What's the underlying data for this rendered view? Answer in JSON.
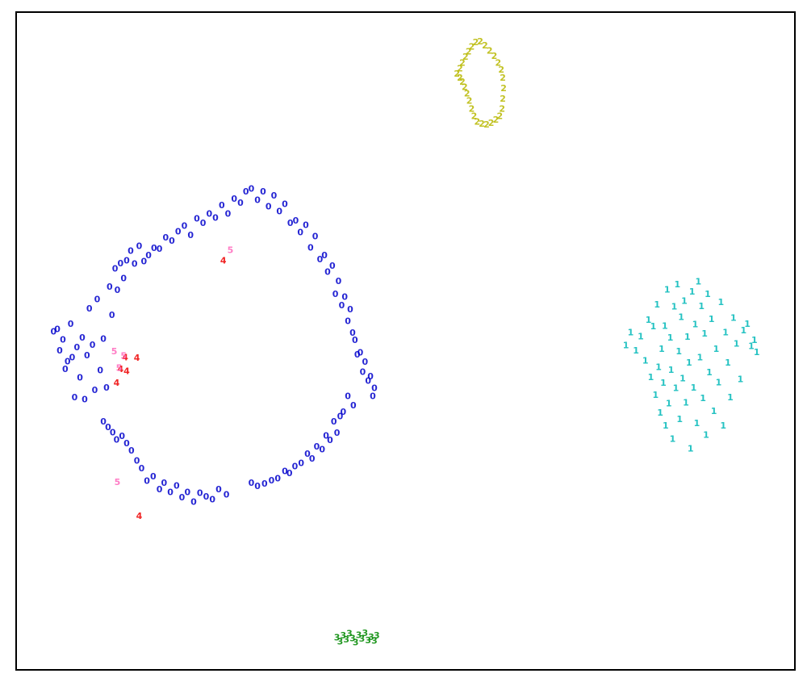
{
  "chart_data": {
    "type": "scatter",
    "title": "",
    "xlabel": "",
    "ylabel": "",
    "xlim": [
      0,
      100
    ],
    "ylim": [
      0,
      100
    ],
    "grid": false,
    "legend": "none",
    "ticks": "none",
    "series": [
      {
        "label": "0",
        "color": "#0000cc",
        "points": [
          [
            4.8,
            51.4
          ],
          [
            5.3,
            51.8
          ],
          [
            5.6,
            48.5
          ],
          [
            6.0,
            50.2
          ],
          [
            6.3,
            45.7
          ],
          [
            6.6,
            46.9
          ],
          [
            7.0,
            52.6
          ],
          [
            7.2,
            47.5
          ],
          [
            7.5,
            41.4
          ],
          [
            7.8,
            49.0
          ],
          [
            8.2,
            44.4
          ],
          [
            8.5,
            50.5
          ],
          [
            8.8,
            41.1
          ],
          [
            9.1,
            47.8
          ],
          [
            9.4,
            54.9
          ],
          [
            9.8,
            49.4
          ],
          [
            10.1,
            42.5
          ],
          [
            10.4,
            56.3
          ],
          [
            10.8,
            45.5
          ],
          [
            11.2,
            50.3
          ],
          [
            11.6,
            42.9
          ],
          [
            12.0,
            58.2
          ],
          [
            12.3,
            53.9
          ],
          [
            12.7,
            61.0
          ],
          [
            13.0,
            57.7
          ],
          [
            13.4,
            61.8
          ],
          [
            13.8,
            59.5
          ],
          [
            14.2,
            62.2
          ],
          [
            14.7,
            63.7
          ],
          [
            15.2,
            61.7
          ],
          [
            15.8,
            64.4
          ],
          [
            16.4,
            62.1
          ],
          [
            17.0,
            63.0
          ],
          [
            17.7,
            64.1
          ],
          [
            18.4,
            64.0
          ],
          [
            19.2,
            65.7
          ],
          [
            20.0,
            65.2
          ],
          [
            20.8,
            66.6
          ],
          [
            21.6,
            67.5
          ],
          [
            22.4,
            66.1
          ],
          [
            23.2,
            68.6
          ],
          [
            24.0,
            67.9
          ],
          [
            24.8,
            69.3
          ],
          [
            25.6,
            68.7
          ],
          [
            26.4,
            70.6
          ],
          [
            27.2,
            69.3
          ],
          [
            28.0,
            71.6
          ],
          [
            28.8,
            71.0
          ],
          [
            29.5,
            72.7
          ],
          [
            30.2,
            73.1
          ],
          [
            31.0,
            71.4
          ],
          [
            31.7,
            72.7
          ],
          [
            32.4,
            70.4
          ],
          [
            33.1,
            72.1
          ],
          [
            33.8,
            69.7
          ],
          [
            34.5,
            70.8
          ],
          [
            35.2,
            67.9
          ],
          [
            35.9,
            68.3
          ],
          [
            36.5,
            66.5
          ],
          [
            37.2,
            67.6
          ],
          [
            37.8,
            64.2
          ],
          [
            38.4,
            65.9
          ],
          [
            39.0,
            62.4
          ],
          [
            39.6,
            63.0
          ],
          [
            40.0,
            60.5
          ],
          [
            40.6,
            61.4
          ],
          [
            41.0,
            57.1
          ],
          [
            41.4,
            59.1
          ],
          [
            41.8,
            55.4
          ],
          [
            42.2,
            56.7
          ],
          [
            42.6,
            53.0
          ],
          [
            42.9,
            54.8
          ],
          [
            43.2,
            51.2
          ],
          [
            43.5,
            50.1
          ],
          [
            43.8,
            47.9
          ],
          [
            44.2,
            48.2
          ],
          [
            44.5,
            45.3
          ],
          [
            44.8,
            46.8
          ],
          [
            45.2,
            43.9
          ],
          [
            45.5,
            44.6
          ],
          [
            45.8,
            41.6
          ],
          [
            46.0,
            42.8
          ],
          [
            43.3,
            40.2
          ],
          [
            42.6,
            41.6
          ],
          [
            42.0,
            39.2
          ],
          [
            41.6,
            38.5
          ],
          [
            41.2,
            36.0
          ],
          [
            40.8,
            37.7
          ],
          [
            40.3,
            34.9
          ],
          [
            39.8,
            35.6
          ],
          [
            39.3,
            33.5
          ],
          [
            38.6,
            33.9
          ],
          [
            38.0,
            32.1
          ],
          [
            37.4,
            32.8
          ],
          [
            36.6,
            31.4
          ],
          [
            35.8,
            30.9
          ],
          [
            35.1,
            29.9
          ],
          [
            34.5,
            30.2
          ],
          [
            33.6,
            29.1
          ],
          [
            32.8,
            28.8
          ],
          [
            31.9,
            28.3
          ],
          [
            31.0,
            27.9
          ],
          [
            30.2,
            28.4
          ],
          [
            27.0,
            26.6
          ],
          [
            26.0,
            27.4
          ],
          [
            25.2,
            25.9
          ],
          [
            24.4,
            26.3
          ],
          [
            23.6,
            26.9
          ],
          [
            22.8,
            25.5
          ],
          [
            22.0,
            27.0
          ],
          [
            21.3,
            26.2
          ],
          [
            20.6,
            28.0
          ],
          [
            19.8,
            27.0
          ],
          [
            19.0,
            28.4
          ],
          [
            18.4,
            27.4
          ],
          [
            17.6,
            29.4
          ],
          [
            16.8,
            28.7
          ],
          [
            16.1,
            30.6
          ],
          [
            15.5,
            31.8
          ],
          [
            14.8,
            33.3
          ],
          [
            14.2,
            34.4
          ],
          [
            13.6,
            35.5
          ],
          [
            12.9,
            35.0
          ],
          [
            12.4,
            36.1
          ],
          [
            11.8,
            36.9
          ],
          [
            11.2,
            37.7
          ]
        ]
      },
      {
        "label": "1",
        "color": "#00b8b8",
        "points": [
          [
            78.3,
            49.3
          ],
          [
            78.9,
            51.3
          ],
          [
            79.6,
            48.5
          ],
          [
            80.2,
            50.7
          ],
          [
            80.8,
            47.0
          ],
          [
            81.2,
            53.2
          ],
          [
            81.5,
            44.5
          ],
          [
            81.8,
            52.2
          ],
          [
            82.1,
            41.8
          ],
          [
            82.3,
            55.5
          ],
          [
            82.5,
            46.0
          ],
          [
            82.7,
            39.1
          ],
          [
            82.9,
            48.8
          ],
          [
            83.1,
            43.6
          ],
          [
            83.3,
            52.3
          ],
          [
            83.4,
            37.1
          ],
          [
            83.6,
            57.8
          ],
          [
            83.8,
            40.5
          ],
          [
            84.0,
            50.5
          ],
          [
            84.1,
            45.6
          ],
          [
            84.3,
            35.1
          ],
          [
            84.5,
            55.2
          ],
          [
            84.7,
            42.8
          ],
          [
            84.9,
            58.6
          ],
          [
            85.1,
            48.4
          ],
          [
            85.2,
            38.1
          ],
          [
            85.4,
            53.6
          ],
          [
            85.6,
            44.3
          ],
          [
            85.8,
            56.1
          ],
          [
            86.0,
            40.6
          ],
          [
            86.2,
            50.6
          ],
          [
            86.4,
            46.7
          ],
          [
            86.6,
            33.6
          ],
          [
            86.8,
            57.5
          ],
          [
            87.0,
            42.9
          ],
          [
            87.2,
            52.5
          ],
          [
            87.4,
            37.5
          ],
          [
            87.6,
            59.0
          ],
          [
            87.8,
            47.5
          ],
          [
            88.0,
            55.3
          ],
          [
            88.2,
            41.3
          ],
          [
            88.4,
            51.1
          ],
          [
            88.6,
            35.7
          ],
          [
            88.8,
            57.1
          ],
          [
            89.0,
            45.2
          ],
          [
            89.3,
            53.3
          ],
          [
            89.6,
            39.3
          ],
          [
            89.9,
            48.8
          ],
          [
            90.2,
            43.7
          ],
          [
            90.5,
            55.9
          ],
          [
            90.8,
            37.1
          ],
          [
            91.1,
            51.3
          ],
          [
            91.4,
            46.7
          ],
          [
            91.7,
            41.4
          ],
          [
            92.1,
            53.5
          ],
          [
            92.5,
            49.6
          ],
          [
            93.0,
            44.2
          ],
          [
            93.4,
            51.6
          ],
          [
            93.9,
            52.6
          ],
          [
            94.4,
            49.2
          ],
          [
            94.8,
            50.1
          ],
          [
            95.1,
            48.3
          ]
        ]
      },
      {
        "label": "2",
        "color": "#b8b800",
        "points": [
          [
            56.6,
            90.6
          ],
          [
            57.0,
            91.4
          ],
          [
            57.3,
            92.3
          ],
          [
            57.7,
            93.2
          ],
          [
            58.1,
            94.0
          ],
          [
            58.5,
            94.7
          ],
          [
            59.0,
            95.4
          ],
          [
            59.6,
            95.5
          ],
          [
            60.2,
            94.9
          ],
          [
            60.8,
            94.1
          ],
          [
            61.4,
            93.3
          ],
          [
            61.9,
            92.3
          ],
          [
            62.3,
            91.2
          ],
          [
            62.5,
            90.0
          ],
          [
            62.6,
            88.4
          ],
          [
            62.5,
            86.8
          ],
          [
            62.4,
            85.3
          ],
          [
            62.1,
            84.2
          ],
          [
            61.6,
            83.6
          ],
          [
            61.0,
            83.1
          ],
          [
            60.4,
            82.9
          ],
          [
            59.8,
            83.0
          ],
          [
            59.2,
            83.3
          ],
          [
            58.8,
            84.2
          ],
          [
            58.5,
            85.3
          ],
          [
            58.2,
            86.5
          ],
          [
            57.9,
            87.6
          ],
          [
            57.6,
            88.6
          ],
          [
            57.3,
            89.4
          ],
          [
            57.0,
            90.0
          ]
        ]
      },
      {
        "label": "3",
        "color": "#008800",
        "points": [
          [
            41.2,
            4.9
          ],
          [
            41.6,
            4.3
          ],
          [
            42.0,
            5.2
          ],
          [
            42.4,
            4.6
          ],
          [
            42.8,
            5.5
          ],
          [
            43.2,
            4.8
          ],
          [
            43.6,
            4.2
          ],
          [
            44.0,
            5.3
          ],
          [
            44.4,
            4.7
          ],
          [
            44.8,
            5.6
          ],
          [
            45.2,
            4.5
          ],
          [
            45.6,
            5.0
          ],
          [
            46.0,
            4.4
          ],
          [
            46.3,
            5.2
          ]
        ]
      },
      {
        "label": "4",
        "color": "#ee0000",
        "points": [
          [
            26.6,
            62.2
          ],
          [
            14.0,
            47.5
          ],
          [
            15.5,
            47.4
          ],
          [
            13.4,
            45.7
          ],
          [
            14.2,
            45.4
          ],
          [
            12.9,
            43.6
          ],
          [
            15.8,
            23.4
          ]
        ]
      },
      {
        "label": "5",
        "color": "#ff66bb",
        "points": [
          [
            27.5,
            63.8
          ],
          [
            12.6,
            48.4
          ],
          [
            13.8,
            47.7
          ],
          [
            13.2,
            45.9
          ],
          [
            13.0,
            28.5
          ]
        ]
      }
    ]
  }
}
